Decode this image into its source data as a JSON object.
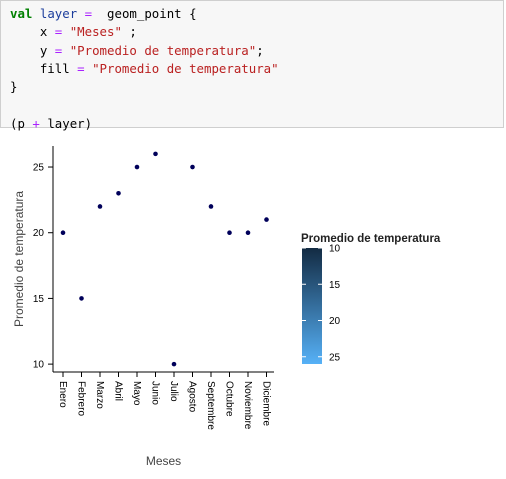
{
  "code": {
    "keyword_val": "val",
    "var_layer": "layer",
    "assign_op": "=",
    "func_call": "geom_point {",
    "line2_prefix": "x",
    "line2_op": "=",
    "line2_str": "\"Meses\"",
    "line2_end": " ;",
    "line3_prefix": "y",
    "line3_op": "=",
    "line3_str": "\"Promedio de temperatura\"",
    "line3_end": ";",
    "line4_prefix": "fill",
    "line4_op": "=",
    "line4_str": "\"Promedio de temperatura\"",
    "line5": "}",
    "line7_open": "(p ",
    "line7_op": "+",
    "line7_close": " layer)"
  },
  "chart_data": {
    "type": "scatter",
    "xlabel": "Meses",
    "ylabel": "Promedio de temperatura",
    "categories": [
      "Enero",
      "Febrero",
      "Marzo",
      "Abril",
      "Mayo",
      "Junio",
      "Julio",
      "Agosto",
      "Septembre",
      "Octubre",
      "Noviembre",
      "Diciembre"
    ],
    "values": [
      20,
      15,
      22,
      23,
      25,
      26,
      10,
      25,
      22,
      20,
      20,
      21
    ],
    "y_ticks": [
      10,
      15,
      20,
      25
    ],
    "ylim": [
      9.4,
      26.6
    ],
    "point_color": "#00005a",
    "legend": {
      "title": "Promedio de temperatura",
      "ticks": [
        10,
        15,
        20,
        25
      ],
      "range": [
        10,
        26
      ],
      "color_low": "#132b43",
      "color_high": "#56b1f7",
      "placement": "right"
    }
  }
}
